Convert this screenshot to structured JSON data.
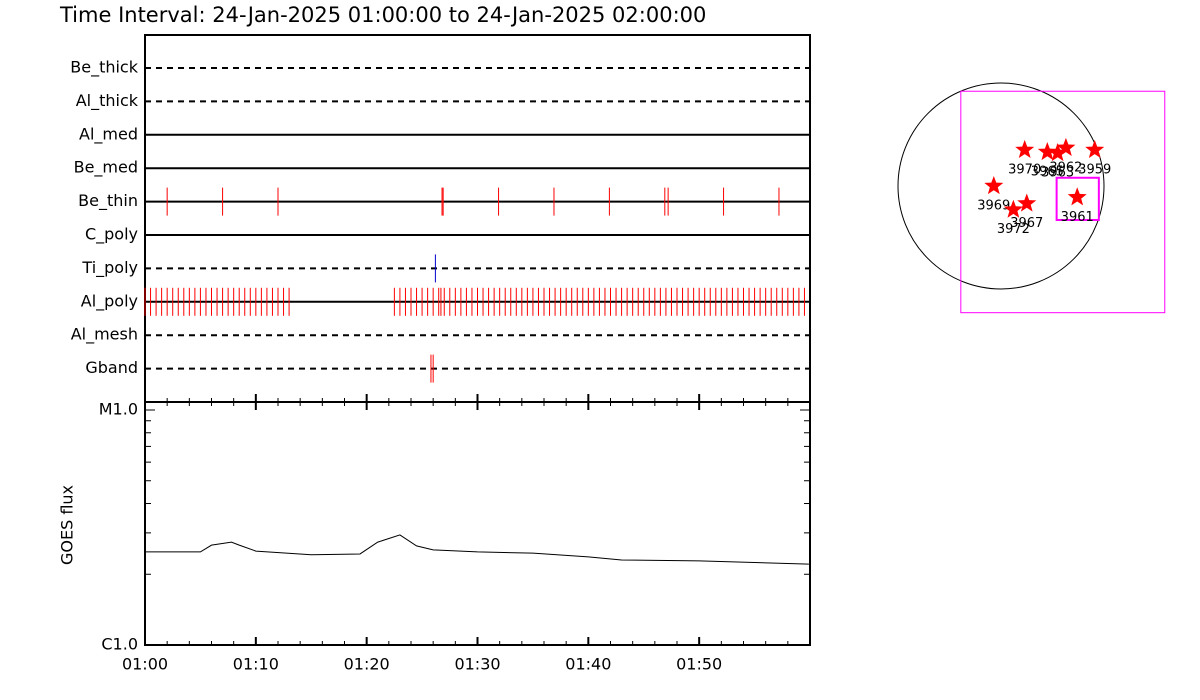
{
  "chart_data": {
    "type": "timeline",
    "title": "Time Interval: 24-Jan-2025 01:00:00 to 24-Jan-2025 02:00:00",
    "xlim": [
      0,
      60
    ],
    "xticks": [
      {
        "value": 0,
        "label": "01:00"
      },
      {
        "value": 10,
        "label": "01:10"
      },
      {
        "value": 20,
        "label": "01:20"
      },
      {
        "value": 30,
        "label": "01:30"
      },
      {
        "value": 40,
        "label": "01:40"
      },
      {
        "value": 50,
        "label": "01:50"
      }
    ],
    "xminor": [
      2,
      4,
      6,
      8,
      12,
      14,
      16,
      18,
      22,
      24,
      26,
      28,
      32,
      34,
      36,
      38,
      42,
      44,
      46,
      48,
      52,
      54,
      56,
      58
    ],
    "filters": [
      {
        "name": "Be_thick",
        "line": "dashed",
        "color": "#ff0000",
        "events": []
      },
      {
        "name": "Al_thick",
        "line": "dashed",
        "color": "#ff0000",
        "events": []
      },
      {
        "name": "Al_med",
        "line": "solid",
        "color": "#ff0000",
        "events": []
      },
      {
        "name": "Be_med",
        "line": "solid",
        "color": "#ff0000",
        "events": []
      },
      {
        "name": "Be_thin",
        "line": "solid",
        "color": "#ff0000",
        "events": [
          2,
          7,
          12,
          26.8,
          26.9,
          31.9,
          36.9,
          41.9,
          46.9,
          47.2,
          52.2,
          57.2
        ]
      },
      {
        "name": "C_poly",
        "line": "solid",
        "color": "#ff0000",
        "events": []
      },
      {
        "name": "Ti_poly",
        "line": "dashed",
        "color": "#0000cc",
        "events": [
          26.2
        ]
      },
      {
        "name": "Al_poly",
        "line": "solid",
        "color": "#ff0000",
        "events": [
          0,
          0.5,
          1,
          1.5,
          2,
          2.5,
          3,
          3.5,
          4,
          4.5,
          5,
          5.5,
          6,
          6.5,
          7,
          7.5,
          8,
          8.5,
          9,
          9.5,
          10,
          10.5,
          11,
          11.5,
          12,
          12.5,
          13,
          22.5,
          23,
          23.5,
          24,
          24.5,
          25,
          25.5,
          26,
          26.5,
          26.7,
          27,
          27.5,
          28,
          28.5,
          29,
          29.5,
          30,
          30.5,
          31,
          31.5,
          32,
          32.5,
          33,
          33.5,
          34,
          34.5,
          35,
          35.5,
          36,
          36.5,
          37,
          37.5,
          38,
          38.5,
          39,
          39.5,
          40,
          40.5,
          41,
          41.5,
          42,
          42.5,
          43,
          43.5,
          44,
          44.5,
          45,
          45.5,
          46,
          46.5,
          47,
          47.5,
          48,
          48.5,
          49,
          49.5,
          50,
          50.5,
          51,
          51.5,
          52,
          52.5,
          53,
          53.5,
          54,
          54.5,
          55,
          55.5,
          56,
          56.5,
          57,
          57.5,
          58,
          58.5,
          59,
          59.5
        ]
      },
      {
        "name": "Al_mesh",
        "line": "dashed",
        "color": "#ff0000",
        "events": []
      },
      {
        "name": "Gband",
        "line": "dashed",
        "color": "#ff0000",
        "events": [
          25.8,
          26.0
        ]
      }
    ],
    "goes": {
      "ylabel": "GOES flux",
      "log_scale": true,
      "ylim": [
        1e-06,
        1e-05
      ],
      "yticks": [
        {
          "value": 1e-06,
          "label": "C1.0"
        },
        {
          "value": 1e-05,
          "label": "M1.0"
        }
      ],
      "yminor": [
        2e-06,
        3e-06,
        4e-06,
        5e-06,
        6e-06,
        7e-06,
        8e-06,
        9e-06
      ],
      "color": "#000000",
      "x": [
        0,
        5,
        6,
        7.8,
        8.5,
        10,
        15,
        19.4,
        21,
        23,
        24.5,
        26,
        30,
        35,
        40,
        43,
        50,
        59.9
      ],
      "values": [
        2.49e-06,
        2.49e-06,
        2.66e-06,
        2.74e-06,
        2.66e-06,
        2.51e-06,
        2.42e-06,
        2.44e-06,
        2.74e-06,
        2.94e-06,
        2.64e-06,
        2.54e-06,
        2.49e-06,
        2.46e-06,
        2.37e-06,
        2.3e-06,
        2.28e-06,
        2.21e-06
      ]
    },
    "map": {
      "color": "#ff0000",
      "box_color": "#ff00ff",
      "regions": [
        {
          "label": "3970",
          "x": 0.23,
          "y": 0.35
        },
        {
          "label": "3965",
          "x": 0.45,
          "y": 0.33
        },
        {
          "label": "3963",
          "x": 0.55,
          "y": 0.32
        },
        {
          "label": "3962",
          "x": 0.63,
          "y": 0.37
        },
        {
          "label": "3959",
          "x": 0.91,
          "y": 0.35
        },
        {
          "label": "3969",
          "x": -0.07,
          "y": 0
        },
        {
          "label": "3972",
          "x": 0.12,
          "y": -0.23
        },
        {
          "label": "3967",
          "x": 0.25,
          "y": -0.17
        },
        {
          "label": "3961",
          "x": 0.74,
          "y": -0.11
        }
      ],
      "fov_boxes": [
        {
          "x": [
            -0.39,
            1.59
          ],
          "y": [
            0.92,
            -1.23
          ]
        },
        {
          "x": [
            0.54,
            0.95
          ],
          "y": [
            0.08,
            -0.33
          ]
        }
      ]
    }
  }
}
